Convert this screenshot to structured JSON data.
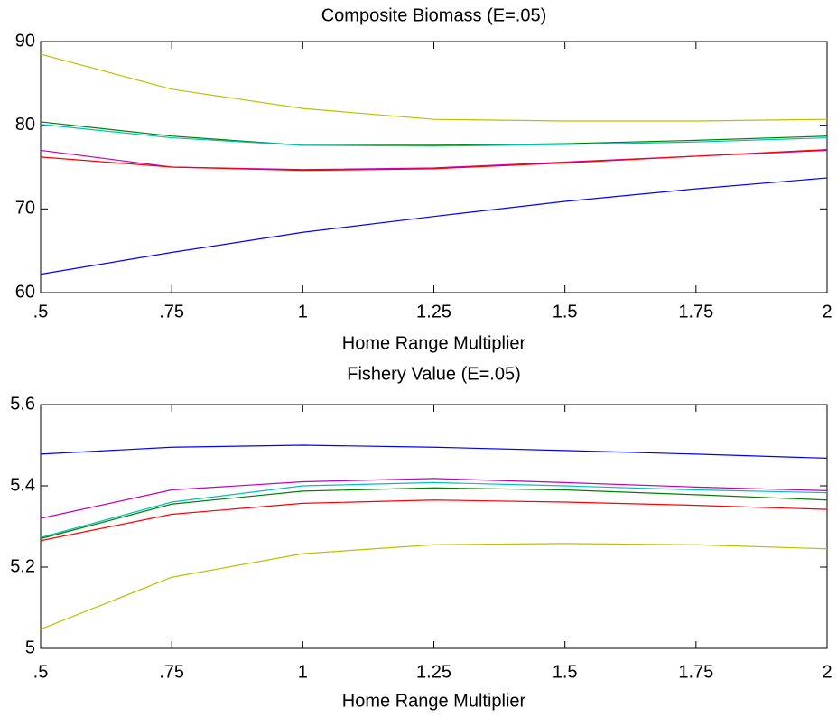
{
  "chart_data": [
    {
      "type": "line",
      "title": "Composite Biomass (E=.05)",
      "xlabel": "Home Range Multiplier",
      "x": [
        0.5,
        0.75,
        1,
        1.25,
        1.5,
        1.75,
        2
      ],
      "xlim": [
        0.5,
        2
      ],
      "xticks": [
        {
          "value": 0.5,
          "label": ".5"
        },
        {
          "value": 0.75,
          "label": ".75"
        },
        1,
        1.25,
        1.5,
        1.75,
        2
      ],
      "ylim": [
        60,
        90
      ],
      "yticks": [
        60,
        70,
        80,
        90
      ],
      "series": [
        {
          "color": "#bfbf00",
          "values": [
            88.5,
            84.3,
            82.0,
            80.7,
            80.5,
            80.5,
            80.7
          ]
        },
        {
          "color": "#008000",
          "values": [
            80.4,
            78.7,
            77.6,
            77.6,
            77.8,
            78.2,
            78.7
          ]
        },
        {
          "color": "#00bfbf",
          "values": [
            80.1,
            78.5,
            77.6,
            77.5,
            77.7,
            78.0,
            78.5
          ]
        },
        {
          "color": "#bf00bf",
          "values": [
            77.0,
            75.0,
            74.7,
            74.9,
            75.6,
            76.3,
            77.0
          ]
        },
        {
          "color": "#ff0000",
          "values": [
            76.2,
            75.0,
            74.6,
            74.8,
            75.5,
            76.3,
            77.1
          ]
        },
        {
          "color": "#0000ff",
          "values": [
            62.2,
            64.8,
            67.2,
            69.1,
            70.9,
            72.4,
            73.7
          ]
        }
      ]
    },
    {
      "type": "line",
      "title": "Fishery Value (E=.05)",
      "xlabel": "Home Range Multiplier",
      "x": [
        0.5,
        0.75,
        1,
        1.25,
        1.5,
        1.75,
        2
      ],
      "xlim": [
        0.5,
        2
      ],
      "xticks": [
        {
          "value": 0.5,
          "label": ".5"
        },
        {
          "value": 0.75,
          "label": ".75"
        },
        1,
        1.25,
        1.5,
        1.75,
        2
      ],
      "ylim": [
        5,
        5.6
      ],
      "yticks": [
        5,
        5.2,
        5.4,
        5.6
      ],
      "series": [
        {
          "color": "#0000ff",
          "values": [
            5.478,
            5.495,
            5.5,
            5.495,
            5.487,
            5.478,
            5.468
          ]
        },
        {
          "color": "#bf00bf",
          "values": [
            5.32,
            5.39,
            5.41,
            5.418,
            5.408,
            5.397,
            5.388
          ]
        },
        {
          "color": "#00bfbf",
          "values": [
            5.273,
            5.36,
            5.4,
            5.408,
            5.4,
            5.39,
            5.383
          ]
        },
        {
          "color": "#008000",
          "values": [
            5.27,
            5.355,
            5.387,
            5.395,
            5.39,
            5.378,
            5.365
          ]
        },
        {
          "color": "#ff0000",
          "values": [
            5.265,
            5.33,
            5.357,
            5.365,
            5.36,
            5.352,
            5.342
          ]
        },
        {
          "color": "#bfbf00",
          "values": [
            5.047,
            5.175,
            5.233,
            5.255,
            5.258,
            5.255,
            5.245
          ]
        }
      ]
    }
  ]
}
